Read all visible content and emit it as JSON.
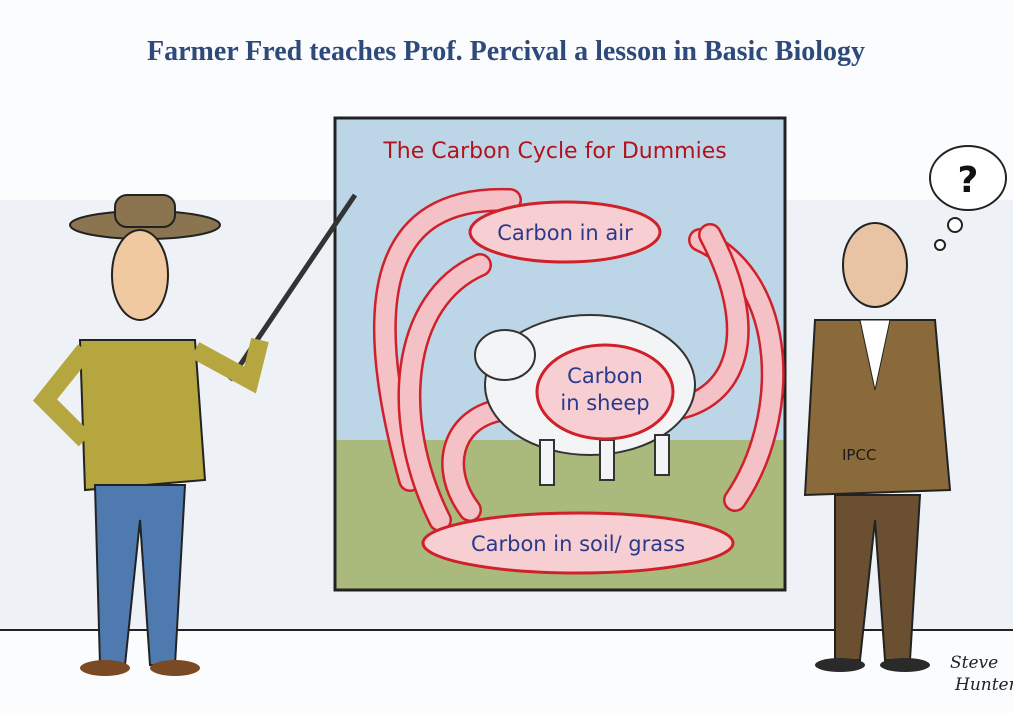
{
  "header": {
    "title": "Farmer Fred teaches Prof. Percival a lesson in Basic Biology"
  },
  "poster": {
    "title": "The Carbon Cycle for Dummies",
    "nodes": [
      {
        "lines": [
          "Carbon in air"
        ]
      },
      {
        "lines": [
          "Carbon",
          "in sheep"
        ]
      },
      {
        "lines": [
          "Carbon in soil/ grass"
        ]
      }
    ]
  },
  "figures": {
    "badge": "IPCC",
    "thought": "?"
  },
  "signature": [
    "Steve",
    "Hunter"
  ]
}
